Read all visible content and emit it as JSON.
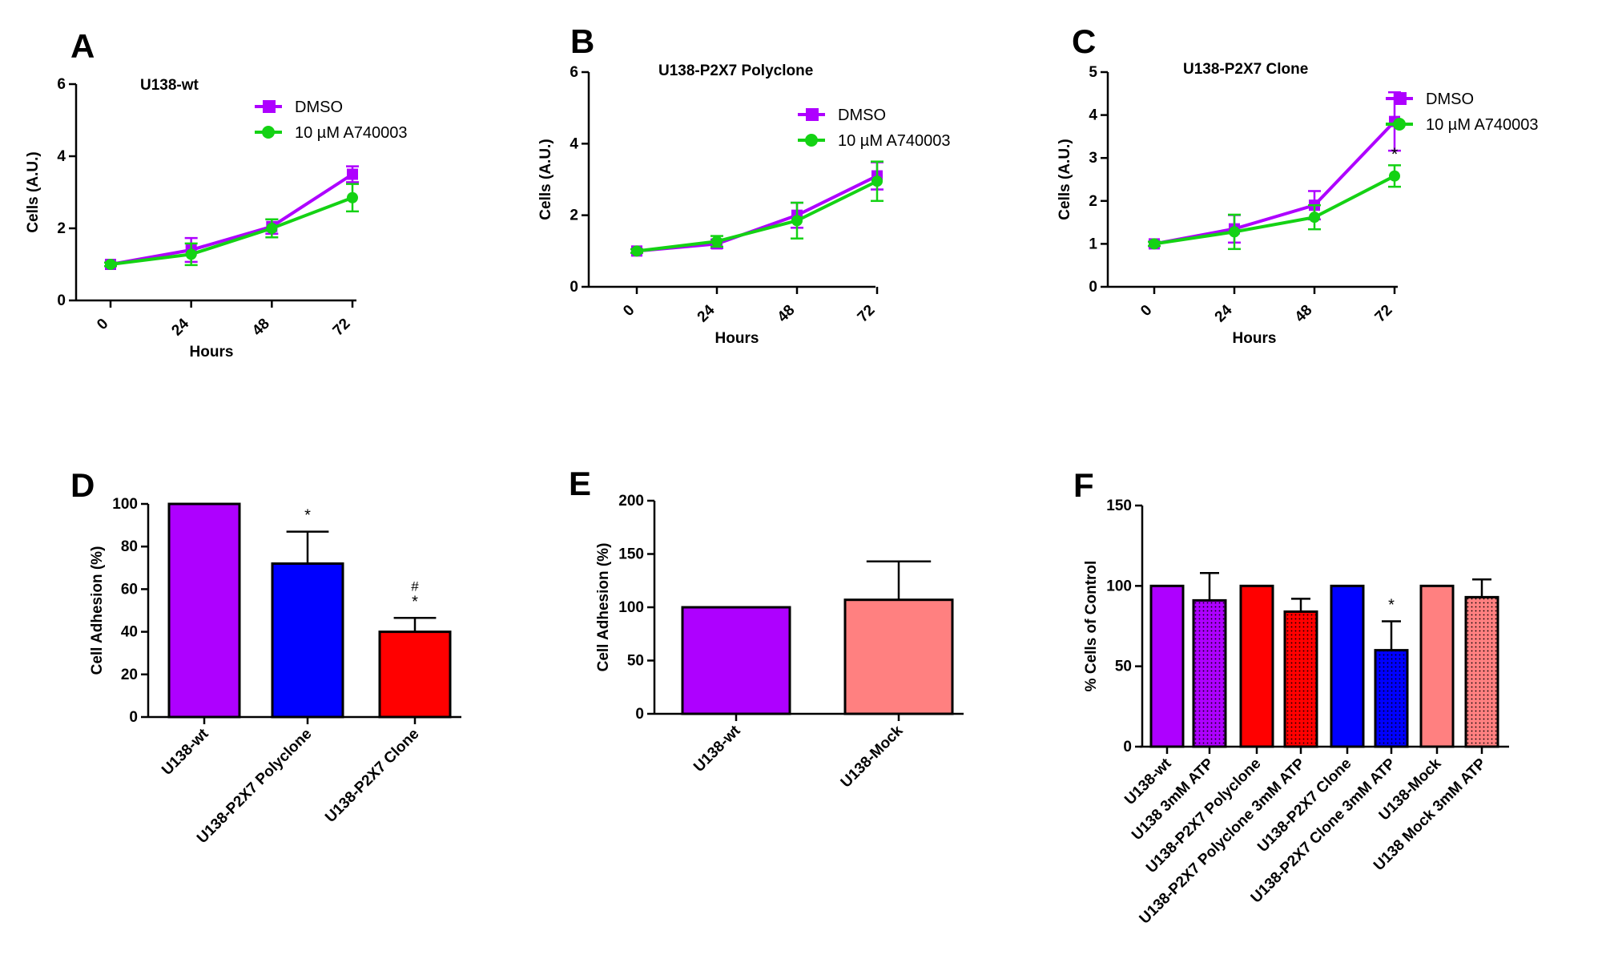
{
  "panel_letters": [
    "A",
    "B",
    "C",
    "D",
    "E",
    "F"
  ],
  "colors": {
    "purple": "#AE00FF",
    "green": "#14D214",
    "blue": "#0000FF",
    "red": "#FF0000",
    "salmon": "#FF8080",
    "axis": "#000000"
  },
  "chart_data": [
    {
      "panel": "A",
      "type": "line",
      "title": "U138-wt",
      "xlabel": "Hours",
      "ylabel": "Cells (A.U.)",
      "x": [
        0,
        24,
        48,
        72
      ],
      "xticks": [
        "0",
        "24",
        "48",
        "72"
      ],
      "ylim": [
        0,
        6
      ],
      "yticks": [
        "0",
        "2",
        "4",
        "6"
      ],
      "legend_position": "top-right",
      "series": [
        {
          "name": "DMSO",
          "marker": "square",
          "color": "#AE00FF",
          "values": [
            1.0,
            1.4,
            2.05,
            3.5
          ],
          "errors": [
            0.05,
            0.33,
            0.2,
            0.22
          ]
        },
        {
          "name": "10 µM A740003",
          "marker": "circle",
          "color": "#14D214",
          "values": [
            1.0,
            1.28,
            2.0,
            2.85
          ],
          "errors": [
            0.05,
            0.3,
            0.25,
            0.38
          ]
        }
      ],
      "annotations": []
    },
    {
      "panel": "B",
      "type": "line",
      "title": "U138-P2X7 Polyclone",
      "xlabel": "Hours",
      "ylabel": "Cells (A.U.)",
      "x": [
        0,
        24,
        48,
        72
      ],
      "xticks": [
        "0",
        "24",
        "48",
        "72"
      ],
      "ylim": [
        0,
        6
      ],
      "yticks": [
        "0",
        "2",
        "4",
        "6"
      ],
      "legend_position": "top-right",
      "series": [
        {
          "name": "DMSO",
          "marker": "square",
          "color": "#AE00FF",
          "values": [
            1.0,
            1.2,
            2.0,
            3.1
          ],
          "errors": [
            0.05,
            0.12,
            0.35,
            0.38
          ]
        },
        {
          "name": "10 µM A740003",
          "marker": "circle",
          "color": "#14D214",
          "values": [
            1.0,
            1.27,
            1.85,
            2.95
          ],
          "errors": [
            0.05,
            0.15,
            0.5,
            0.55
          ]
        }
      ],
      "annotations": []
    },
    {
      "panel": "C",
      "type": "line",
      "title": "U138-P2X7 Clone",
      "xlabel": "Hours",
      "ylabel": "Cells (A.U.)",
      "x": [
        0,
        24,
        48,
        72
      ],
      "xticks": [
        "0",
        "24",
        "48",
        "72"
      ],
      "ylim": [
        0,
        5
      ],
      "yticks": [
        "0",
        "1",
        "2",
        "3",
        "4",
        "5"
      ],
      "legend_position": "top-right",
      "series": [
        {
          "name": "DMSO",
          "marker": "square",
          "color": "#AE00FF",
          "values": [
            1.0,
            1.35,
            1.9,
            3.85
          ],
          "errors": [
            0.05,
            0.32,
            0.33,
            0.68
          ]
        },
        {
          "name": "10 µM A740003",
          "marker": "circle",
          "color": "#14D214",
          "values": [
            1.0,
            1.28,
            1.62,
            2.58
          ],
          "errors": [
            0.05,
            0.4,
            0.28,
            0.25
          ]
        }
      ],
      "annotations": [
        {
          "text": "*",
          "x": 72,
          "y": 2.95
        }
      ]
    },
    {
      "panel": "D",
      "type": "bar",
      "title": "",
      "xlabel": "",
      "ylabel": "Cell Adhesion (%)",
      "categories": [
        "U138-wt",
        "U138-P2X7 Polyclone",
        "U138-P2X7 Clone"
      ],
      "values": [
        100,
        72,
        40
      ],
      "errors": [
        0,
        15,
        6.5
      ],
      "colors": [
        "#AE00FF",
        "#0000FF",
        "#FF0000"
      ],
      "patterns": [
        "solid",
        "solid",
        "solid"
      ],
      "ylim": [
        0,
        100
      ],
      "yticks": [
        "0",
        "20",
        "40",
        "60",
        "80",
        "100"
      ],
      "marks": [
        "",
        "*",
        "*"
      ],
      "marks2": [
        "",
        "",
        "#"
      ]
    },
    {
      "panel": "E",
      "type": "bar",
      "title": "",
      "xlabel": "",
      "ylabel": "Cell Adhesion (%)",
      "categories": [
        "U138-wt",
        "U138-Mock"
      ],
      "values": [
        100,
        107
      ],
      "errors": [
        0,
        36
      ],
      "colors": [
        "#AE00FF",
        "#FF8080"
      ],
      "patterns": [
        "solid",
        "solid"
      ],
      "ylim": [
        0,
        200
      ],
      "yticks": [
        "0",
        "50",
        "100",
        "150",
        "200"
      ],
      "marks": [
        "",
        ""
      ],
      "marks2": [
        "",
        ""
      ]
    },
    {
      "panel": "F",
      "type": "bar",
      "title": "",
      "xlabel": "",
      "ylabel": "% Cells of Control",
      "categories": [
        "U138-wt",
        "U138  3mM ATP",
        "U138-P2X7 Polyclone",
        "U138-P2X7 Polyclone 3mM ATP",
        "U138-P2X7 Clone",
        "U138-P2X7  Clone 3mM ATP",
        "U138-Mock",
        "U138 Mock 3mM ATP"
      ],
      "values": [
        100,
        91,
        100,
        84,
        100,
        60,
        100,
        93
      ],
      "errors": [
        0,
        17,
        0,
        8,
        0,
        18,
        0,
        11
      ],
      "colors": [
        "#AE00FF",
        "#AE00FF",
        "#FF0000",
        "#FF0000",
        "#0000FF",
        "#0000FF",
        "#FF8080",
        "#FF8080"
      ],
      "patterns": [
        "solid",
        "dotted",
        "solid",
        "dotted",
        "solid",
        "dotted",
        "solid",
        "dotted"
      ],
      "ylim": [
        0,
        150
      ],
      "yticks": [
        "0",
        "50",
        "100",
        "150"
      ],
      "marks": [
        "",
        "",
        "",
        "",
        "",
        "*",
        "",
        ""
      ],
      "marks2": [
        "",
        "",
        "",
        "",
        "",
        "",
        "",
        ""
      ]
    }
  ]
}
